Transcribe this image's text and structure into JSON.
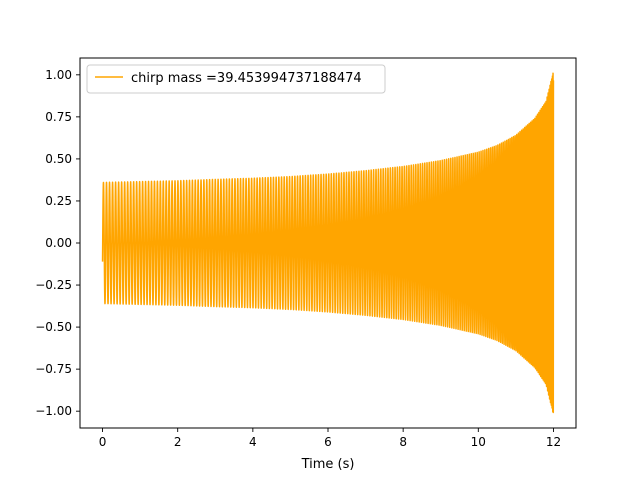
{
  "chart_data": {
    "type": "line",
    "title": "",
    "xlabel": "Time (s)",
    "ylabel": "",
    "xlim": [
      -0.6,
      12.6
    ],
    "ylim": [
      -1.1,
      1.1
    ],
    "x_ticks": [
      0,
      2,
      4,
      6,
      8,
      10,
      12
    ],
    "y_ticks": [
      -1.0,
      -0.75,
      -0.5,
      -0.25,
      0.0,
      0.25,
      0.5,
      0.75,
      1.0
    ],
    "x_tick_labels": [
      "0",
      "2",
      "4",
      "6",
      "8",
      "10",
      "12"
    ],
    "y_tick_labels": [
      "−1.00",
      "−0.75",
      "−0.50",
      "−0.25",
      "0.00",
      "0.25",
      "0.50",
      "0.75",
      "1.00"
    ],
    "grid": false,
    "legend_position": "top-left",
    "series": [
      {
        "name": "chirp mass =39.453994737188474",
        "color": "#FFA500",
        "description_points": {
          "x": [
            0,
            1,
            2,
            3,
            4,
            5,
            6,
            7,
            8,
            9,
            10,
            10.5,
            11,
            11.5,
            11.8,
            12.0
          ],
          "envelope_y": [
            0.36,
            0.365,
            0.37,
            0.378,
            0.385,
            0.395,
            0.41,
            0.43,
            0.455,
            0.49,
            0.54,
            0.58,
            0.64,
            0.74,
            0.84,
            1.02
          ],
          "start_y": -0.34,
          "end_y": 1.0,
          "min_y": -1.02
        }
      }
    ]
  }
}
